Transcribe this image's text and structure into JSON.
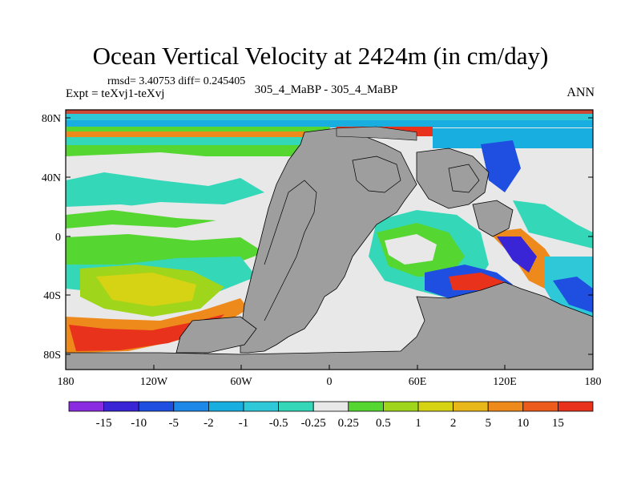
{
  "title": "Ocean Vertical Velocity at 2424m (in cm/day)",
  "stats": "rmsd= 3.40753 diff= 0.245405",
  "expt": "Expt = teXvj1-teXvj",
  "center_label": "305_4_MaBP - 305_4_MaBP",
  "season": "ANN",
  "axes": {
    "lat_ticks": [
      "80N",
      "40N",
      "0",
      "40S",
      "80S"
    ],
    "lon_ticks": [
      "180",
      "120W",
      "60W",
      "0",
      "60E",
      "120E",
      "180"
    ]
  },
  "colorbar": {
    "labels": [
      "-15",
      "-10",
      "-5",
      "-2",
      "-1",
      "-0.5",
      "-0.25",
      "0.25",
      "0.5",
      "1",
      "2",
      "5",
      "10",
      "15"
    ],
    "colors": [
      "#8a2be2",
      "#3a25d6",
      "#1f4fe0",
      "#1e88e8",
      "#19aee0",
      "#2ec8d8",
      "#34d8b8",
      "#e8e8e8",
      "#55d631",
      "#9fd61c",
      "#d6d214",
      "#e8b81a",
      "#ee8a1c",
      "#ec5a1c",
      "#e8321c"
    ]
  },
  "palette": {
    "land": "#9e9e9e",
    "neutral": "#e8e8e8"
  }
}
